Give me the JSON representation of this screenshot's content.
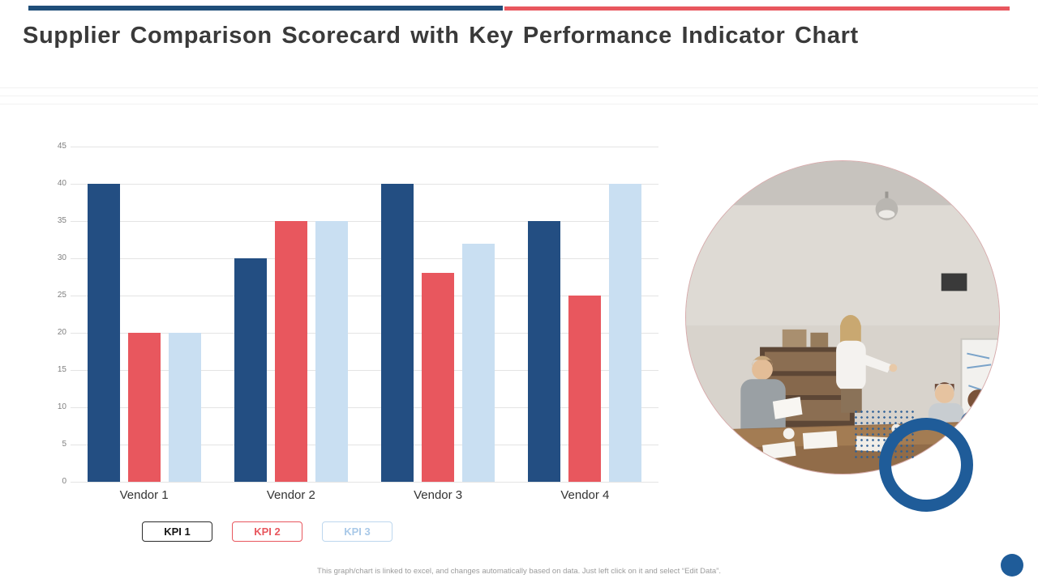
{
  "slide": {
    "title": "Supplier Comparison Scorecard with Key Performance Indicator Chart",
    "footer": "This graph/chart is linked to excel, and changes automatically based on data. Just left click on it and select “Edit Data”."
  },
  "chart_data": {
    "type": "bar",
    "title": "",
    "categories": [
      "Vendor 1",
      "Vendor 2",
      "Vendor 3",
      "Vendor 4"
    ],
    "series": [
      {
        "name": "KPI 1",
        "color": "#234e82",
        "values": [
          40,
          30,
          40,
          35
        ]
      },
      {
        "name": "KPI 2",
        "color": "#e8575e",
        "values": [
          20,
          35,
          28,
          25
        ]
      },
      {
        "name": "KPI 3",
        "color": "#c9dff2",
        "values": [
          20,
          35,
          32,
          40
        ]
      }
    ],
    "xlabel": "",
    "ylabel": "",
    "ylim": [
      0,
      45
    ],
    "ytick_step": 5,
    "grid": true,
    "legend_position": "bottom-left"
  },
  "legend": {
    "items": [
      {
        "label": "KPI 1",
        "border_color": "#2b2b2b",
        "text_color": "#141414"
      },
      {
        "label": "KPI 2",
        "border_color": "#e8575e",
        "text_color": "#e8575e"
      },
      {
        "label": "KPI 3",
        "border_color": "#bdd7ee",
        "text_color": "#a9c9e8"
      }
    ]
  },
  "decor": {
    "top_bar_left_color": "#1f4e79",
    "top_bar_right_color": "#e8575e",
    "donut_color": "#1f5c99",
    "corner_dot_color": "#1f5c99",
    "photo_alt": "team-meeting-photo"
  }
}
